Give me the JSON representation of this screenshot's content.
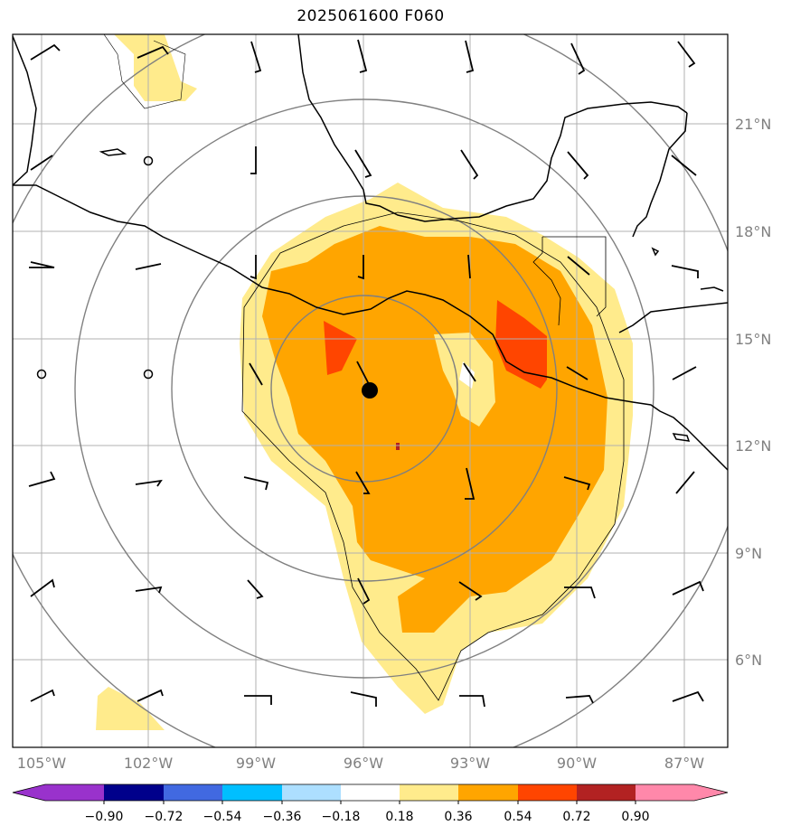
{
  "title": "2025061600 F060",
  "map": {
    "lon_labels": [
      "105°W",
      "102°W",
      "99°W",
      "96°W",
      "93°W",
      "90°W",
      "87°W"
    ],
    "lat_labels": [
      "21°N",
      "18°N",
      "15°N",
      "12°N",
      "9°N",
      "6°N"
    ],
    "colors": {
      "frame": "#000000",
      "grid": "#b0b0b0",
      "coast": "#000000",
      "range_ring": "#808080",
      "band_018_036": "#FFEB8C",
      "band_036_054": "#FFA500",
      "band_054_072": "#FF4500",
      "band_072_090": "#B22222",
      "center_marker": "#000000"
    },
    "center_marker": {
      "lon": "95.8W",
      "lat": "13.5N"
    }
  },
  "colorbar": {
    "ticks": [
      "−0.90",
      "−0.72",
      "−0.54",
      "−0.36",
      "−0.18",
      "0.18",
      "0.36",
      "0.54",
      "0.72",
      "0.90"
    ],
    "colors": [
      "#9932CC",
      "#9932CC",
      "#00008B",
      "#4169E1",
      "#00BFFF",
      "#ADDFFF",
      "#FFFFFF",
      "#FFEB8C",
      "#FFA500",
      "#FF4500",
      "#B22222",
      "#FF88AA",
      "#FF88AA"
    ]
  }
}
